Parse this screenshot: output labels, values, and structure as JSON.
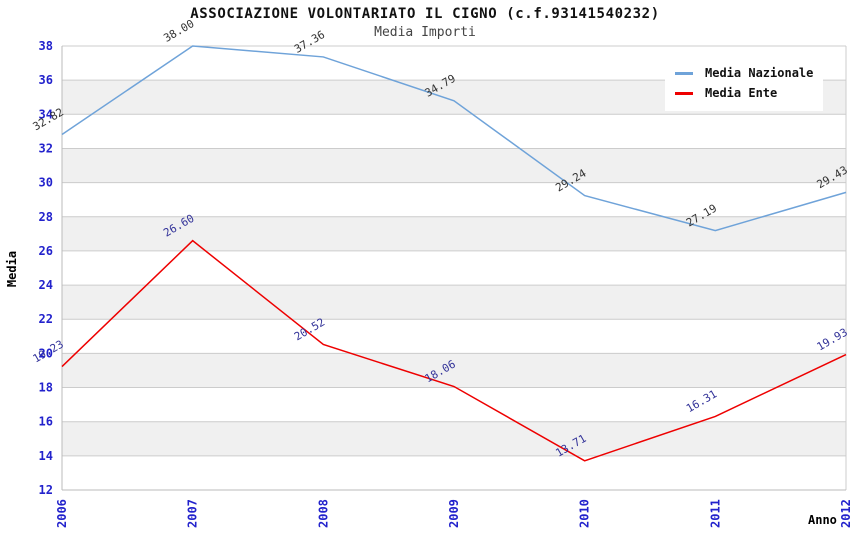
{
  "header": {
    "title": "ASSOCIAZIONE VOLONTARIATO IL CIGNO (c.f.93141540232)",
    "subtitle": "Media Importi"
  },
  "axes": {
    "y_label": "Media",
    "x_label": "Anno",
    "yticks": [
      12,
      14,
      16,
      18,
      20,
      22,
      24,
      26,
      28,
      30,
      32,
      34,
      36,
      38
    ],
    "tick_color": "#2222cc"
  },
  "colors": {
    "background": "#ffffff",
    "band_gray": "#f0f0f0",
    "grid": "#cccccc",
    "axis_line": "#bbbbbb",
    "national_blue": "#6fa3d9",
    "ente_red": "#ee0000"
  },
  "chart_data": {
    "type": "line",
    "title": "ASSOCIAZIONE VOLONTARIATO IL CIGNO (c.f.93141540232)",
    "subtitle": "Media Importi",
    "xlabel": "Anno",
    "ylabel": "Media",
    "categories": [
      "2006",
      "2007",
      "2008",
      "2009",
      "2010",
      "2011",
      "2012"
    ],
    "series": [
      {
        "name": "Media Nazionale",
        "color": "#6fa3d9",
        "label_color": "#333333",
        "values": [
          32.82,
          38.0,
          37.36,
          34.79,
          29.24,
          27.19,
          29.43
        ]
      },
      {
        "name": "Media Ente",
        "color": "#ee0000",
        "label_color": "#333399",
        "values": [
          19.23,
          26.6,
          20.52,
          18.06,
          13.71,
          16.31,
          19.93
        ]
      }
    ],
    "ylim": [
      12,
      38
    ],
    "ytick_step": 2,
    "grid": true,
    "banded_background": true,
    "legend_position": "top-right",
    "point_labels_decimals": 2
  }
}
